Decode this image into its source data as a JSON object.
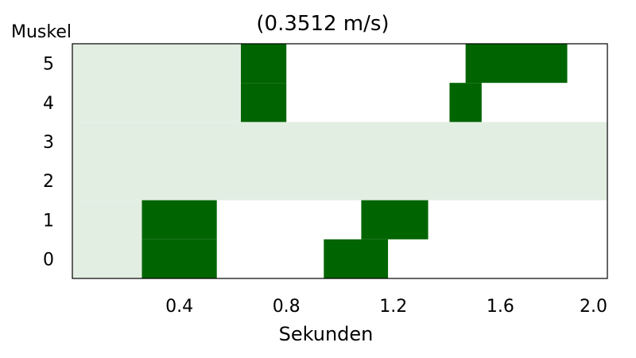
{
  "chart_data": {
    "type": "heatmap",
    "title": "(0.3512 m/s)",
    "xlabel": "Sekunden",
    "ylabel": "Muskel",
    "xlim": [
      0.0,
      2.0
    ],
    "ylim": [
      -0.5,
      5.5
    ],
    "xticks": [
      "0.4",
      "0.8",
      "1.2",
      "1.6",
      "2.0"
    ],
    "xtick_values": [
      0.4,
      0.8,
      1.2,
      1.6,
      2.0
    ],
    "yticks": [
      "0",
      "1",
      "2",
      "3",
      "4",
      "5"
    ],
    "colors": {
      "active": "#006400",
      "shade": "#e3eee3",
      "background": "#ffffff"
    },
    "shaded_regions": [
      {
        "x": [
          0.0,
          2.0
        ],
        "y": [
          1.5,
          3.5
        ]
      },
      {
        "x": [
          0.0,
          0.63
        ],
        "y": [
          3.5,
          5.5
        ]
      },
      {
        "x": [
          0.0,
          0.26
        ],
        "y": [
          -0.5,
          1.5
        ]
      }
    ],
    "activations": [
      {
        "muscle": 0,
        "x": [
          0.26,
          0.54
        ]
      },
      {
        "muscle": 0,
        "x": [
          0.94,
          1.18
        ]
      },
      {
        "muscle": 1,
        "x": [
          0.26,
          0.54
        ]
      },
      {
        "muscle": 1,
        "x": [
          1.08,
          1.33
        ]
      },
      {
        "muscle": 4,
        "x": [
          0.63,
          0.8
        ]
      },
      {
        "muscle": 4,
        "x": [
          1.41,
          1.53
        ]
      },
      {
        "muscle": 5,
        "x": [
          0.63,
          0.8
        ]
      },
      {
        "muscle": 5,
        "x": [
          1.47,
          1.85
        ]
      }
    ]
  }
}
